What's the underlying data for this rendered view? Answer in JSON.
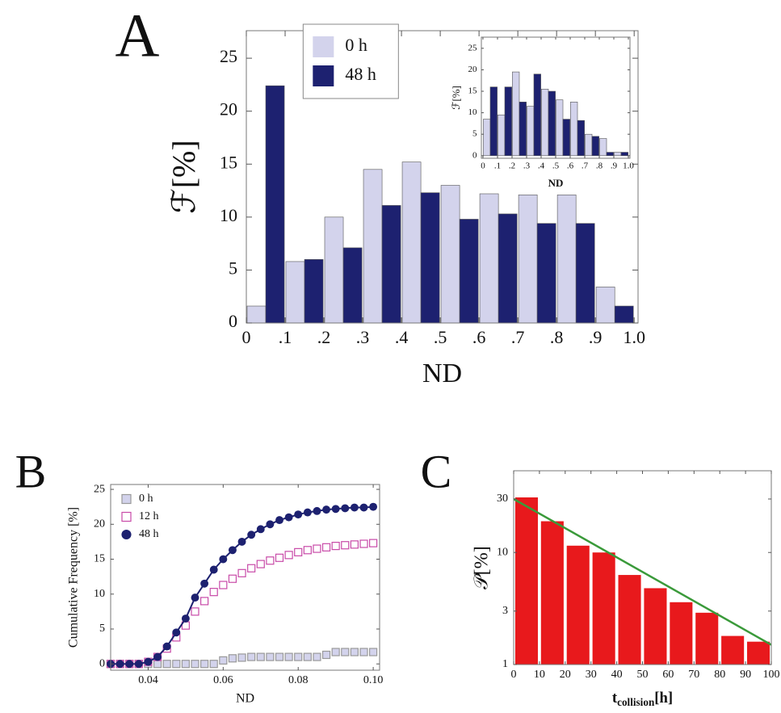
{
  "chart_data": [
    {
      "type": "histogram",
      "panel_label": "A",
      "xlabel": "ND",
      "ylabel": "ℱ[%]",
      "bins": [
        0,
        0.1,
        0.2,
        0.3,
        0.4,
        0.5,
        0.6,
        0.7,
        0.8,
        0.9,
        1.0
      ],
      "series": [
        {
          "name": "0 h",
          "color": "#d3d3ec",
          "values": [
            1.6,
            5.8,
            10.0,
            14.5,
            15.2,
            13.0,
            12.2,
            12.1,
            12.1,
            3.4
          ]
        },
        {
          "name": "48 h",
          "color": "#1d2170",
          "values": [
            22.4,
            6.0,
            7.1,
            11.1,
            12.3,
            9.8,
            10.3,
            9.4,
            9.4,
            1.6
          ]
        }
      ],
      "xlim": [
        0,
        1.01
      ],
      "ylim": [
        0,
        27.6
      ],
      "xticks": [
        0,
        {
          "value": 0.1,
          "label": ".1"
        },
        {
          "value": 0.2,
          "label": ".2"
        },
        {
          "value": 0.3,
          "label": ".3"
        },
        {
          "value": 0.4,
          "label": ".4"
        },
        {
          "value": 0.5,
          "label": ".5"
        },
        {
          "value": 0.6,
          "label": ".6"
        },
        {
          "value": 0.7,
          "label": ".7"
        },
        {
          "value": 0.8,
          "label": ".8"
        },
        {
          "value": 0.9,
          "label": ".9"
        },
        {
          "value": 1,
          "label": "1.0"
        }
      ],
      "yticks": [
        0,
        5,
        10,
        15,
        20,
        25
      ],
      "legend": "upper center"
    },
    {
      "type": "histogram",
      "xlabel": "ND",
      "ylabel": "ℱ[%]",
      "bins": [
        0,
        0.1,
        0.2,
        0.3,
        0.4,
        0.5,
        0.6,
        0.7,
        0.8,
        0.9,
        1.0
      ],
      "series": [
        {
          "color": "#d3d3ec",
          "values": [
            8.5,
            9.5,
            19.5,
            11.5,
            15.5,
            13.0,
            12.5,
            5.0,
            4.0,
            0.8
          ]
        },
        {
          "color": "#1d2170",
          "values": [
            16.0,
            16.0,
            12.5,
            19.0,
            15.0,
            8.5,
            8.2,
            4.5,
            0.8,
            0.8
          ]
        }
      ],
      "xlim": [
        -0.011,
        1.011
      ],
      "ylim": [
        -0.6,
        27.6
      ],
      "xticks": [
        0,
        {
          "value": 0.1,
          "label": ".1"
        },
        {
          "value": 0.2,
          "label": ".2"
        },
        {
          "value": 0.3,
          "label": ".3"
        },
        {
          "value": 0.4,
          "label": ".4"
        },
        {
          "value": 0.5,
          "label": ".5"
        },
        {
          "value": 0.6,
          "label": ".6"
        },
        {
          "value": 0.7,
          "label": ".7"
        },
        {
          "value": 0.8,
          "label": ".8"
        },
        {
          "value": 0.9,
          "label": ".9"
        },
        {
          "value": 1,
          "label": "1.0"
        }
      ],
      "yticks": [
        0,
        5,
        10,
        15,
        20,
        25
      ]
    },
    {
      "type": "line",
      "panel_label": "B",
      "xlabel": "ND",
      "ylabel": "Cumulative Frequency [%]",
      "x": [
        0.03,
        0.0325,
        0.035,
        0.0375,
        0.04,
        0.0425,
        0.045,
        0.0475,
        0.05,
        0.0525,
        0.055,
        0.0575,
        0.06,
        0.0625,
        0.065,
        0.0675,
        0.07,
        0.0725,
        0.075,
        0.0775,
        0.08,
        0.0825,
        0.085,
        0.0875,
        0.09,
        0.0925,
        0.095,
        0.0975,
        0.1
      ],
      "series": [
        {
          "name": "0 h",
          "color": "#d3d3ec",
          "marker": "square",
          "values": [
            0,
            0,
            0,
            0,
            0,
            0,
            0,
            0,
            0,
            0,
            0,
            0,
            0.5,
            0.8,
            0.9,
            1.0,
            1.0,
            1.0,
            1.0,
            1.0,
            1.0,
            1.0,
            1.0,
            1.3,
            1.7,
            1.7,
            1.7,
            1.7,
            1.7
          ]
        },
        {
          "name": "12 h",
          "color": "#c84aa8",
          "marker": "open-square",
          "values": [
            0,
            0,
            0,
            0,
            0.3,
            1,
            2.2,
            3.8,
            5.5,
            7.5,
            9,
            10.3,
            11.3,
            12.2,
            13,
            13.7,
            14.3,
            14.8,
            15.2,
            15.6,
            16,
            16.3,
            16.5,
            16.7,
            16.9,
            17,
            17.1,
            17.2,
            17.3
          ]
        },
        {
          "name": "48 h",
          "color": "#1d2170",
          "marker": "circle",
          "line": true,
          "values": [
            0,
            0,
            0,
            0,
            0.3,
            1,
            2.5,
            4.5,
            6.5,
            9.5,
            11.5,
            13.5,
            15,
            16.3,
            17.5,
            18.5,
            19.3,
            20,
            20.6,
            21,
            21.4,
            21.7,
            21.9,
            22.1,
            22.2,
            22.3,
            22.4,
            22.4,
            22.5
          ]
        }
      ],
      "xlim": [
        0.03,
        0.1017
      ],
      "ylim": [
        -0.9,
        25.7
      ],
      "xticks": [
        0.04,
        0.06,
        0.08,
        {
          "value": 0.1,
          "label": "0.10"
        }
      ],
      "yticks": [
        0,
        5,
        10,
        15,
        20,
        25
      ],
      "legend": "upper left"
    },
    {
      "type": "histogram",
      "panel_label": "C",
      "xlabel": [
        "t",
        "collision",
        "[h]"
      ],
      "ylabel": "𝒫[%]",
      "bins": [
        0,
        10,
        20,
        30,
        40,
        50,
        60,
        70,
        80,
        90,
        100
      ],
      "series": [
        {
          "color": "#e8191c",
          "values": [
            31,
            19,
            11.5,
            10,
            6.3,
            4.8,
            3.6,
            2.9,
            1.8,
            1.6
          ]
        }
      ],
      "fit": {
        "x": [
          0,
          100
        ],
        "values": [
          30,
          1.5
        ],
        "color": "#3a9a3a"
      },
      "xlim": [
        0,
        100
      ],
      "ylim": [
        1,
        53.6
      ],
      "yscale": "log",
      "xticks": [
        0,
        10,
        20,
        30,
        40,
        50,
        60,
        70,
        80,
        90,
        100
      ],
      "yticks": [
        1,
        3,
        10,
        30
      ]
    }
  ]
}
